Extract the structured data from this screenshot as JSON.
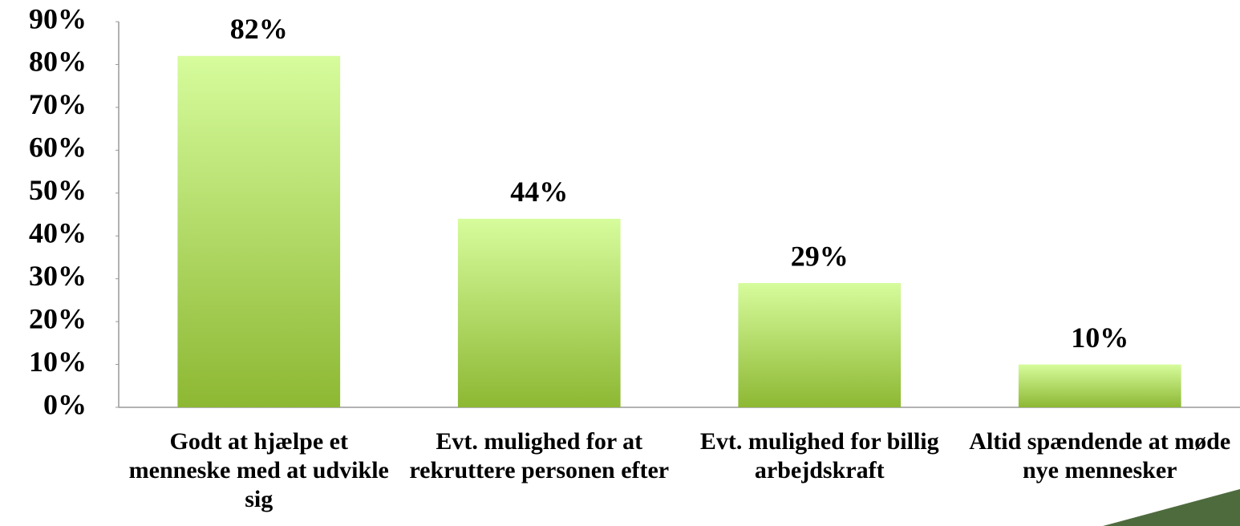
{
  "chart_data": {
    "type": "bar",
    "categories": [
      "Godt at hjælpe et menneske med at udvikle sig",
      "Evt. mulighed for at rekruttere personen efter",
      "Evt. mulighed for billig arbejdskraft",
      "Altid spændende at møde nye mennesker"
    ],
    "values": [
      82,
      44,
      29,
      10
    ],
    "value_labels": [
      "82%",
      "44%",
      "29%",
      "10%"
    ],
    "color": "#8db833",
    "ylim": [
      0,
      90
    ],
    "yticks": [
      {
        "value": 0,
        "label": "0%"
      },
      {
        "value": 10,
        "label": "10%"
      },
      {
        "value": 20,
        "label": "20%"
      },
      {
        "value": 30,
        "label": "30%"
      },
      {
        "value": 40,
        "label": "40%"
      },
      {
        "value": 50,
        "label": "50%"
      },
      {
        "value": 60,
        "label": "60%"
      },
      {
        "value": 70,
        "label": "70%"
      },
      {
        "value": 80,
        "label": "80%"
      },
      {
        "value": 90,
        "label": "90%"
      }
    ],
    "grid": false
  }
}
